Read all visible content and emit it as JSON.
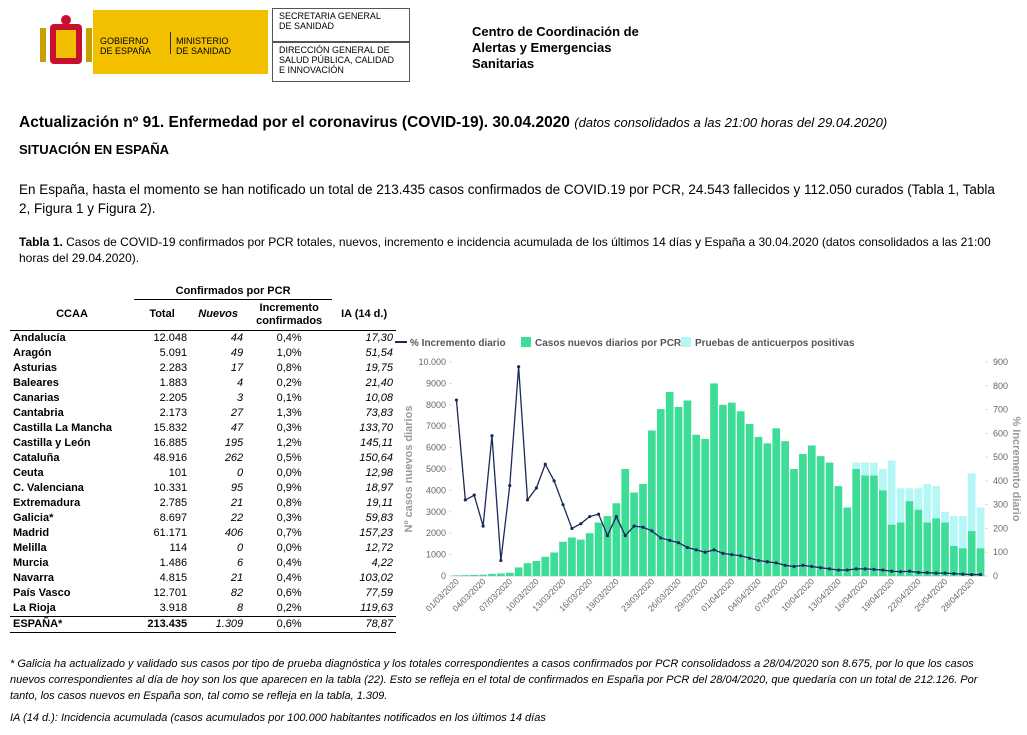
{
  "header": {
    "gov_line1": "GOBIERNO",
    "gov_line2": "DE ESPAÑA",
    "ministry_line1": "MINISTERIO",
    "ministry_line2": "DE SANIDAD",
    "box1": [
      "SECRETARIA GENERAL",
      "DE SANIDAD"
    ],
    "box2": [
      "DIRECCIÓN GENERAL DE",
      "SALUD PÚBLICA, CALIDAD",
      "E INNOVACIÓN"
    ],
    "center": [
      "Centro de Coordinación de",
      "Alertas y Emergencias",
      "Sanitarias"
    ]
  },
  "title": "Actualización nº 91. Enfermedad por el coronavirus (COVID-19). 30.04.2020",
  "title_note": "(datos consolidados a las 21:00 horas del 29.04.2020)",
  "section": "SITUACIÓN EN ESPAÑA",
  "intro": "En España, hasta el momento se han notificado un total de 213.435 casos confirmados de COVID.19 por PCR, 24.543 fallecidos y 112.050 curados (Tabla 1, Tabla 2, Figura 1 y Figura 2).",
  "caption_label": "Tabla 1.",
  "caption": "Casos de COVID-19 confirmados por PCR totales, nuevos, incremento e incidencia acumulada de los últimos 14 días y España a 30.04.2020 (datos consolidados a las 21:00 horas del 29.04.2020).",
  "table": {
    "group_header": "Confirmados por PCR",
    "columns": [
      "CCAA",
      "Total",
      "Nuevos",
      "Incremento confirmados",
      "IA (14 d.)"
    ],
    "rows": [
      [
        "Andalucía",
        "12.048",
        "44",
        "0,4%",
        "17,30"
      ],
      [
        "Aragón",
        "5.091",
        "49",
        "1,0%",
        "51,54"
      ],
      [
        "Asturias",
        "2.283",
        "17",
        "0,8%",
        "19,75"
      ],
      [
        "Baleares",
        "1.883",
        "4",
        "0,2%",
        "21,40"
      ],
      [
        "Canarias",
        "2.205",
        "3",
        "0,1%",
        "10,08"
      ],
      [
        "Cantabria",
        "2.173",
        "27",
        "1,3%",
        "73,83"
      ],
      [
        "Castilla La Mancha",
        "15.832",
        "47",
        "0,3%",
        "133,70"
      ],
      [
        "Castilla y León",
        "16.885",
        "195",
        "1,2%",
        "145,11"
      ],
      [
        "Cataluña",
        "48.916",
        "262",
        "0,5%",
        "150,64"
      ],
      [
        "Ceuta",
        "101",
        "0",
        "0,0%",
        "12,98"
      ],
      [
        "C. Valenciana",
        "10.331",
        "95",
        "0,9%",
        "18,97"
      ],
      [
        "Extremadura",
        "2.785",
        "21",
        "0,8%",
        "19,11"
      ],
      [
        "Galicia*",
        "8.697",
        "22",
        "0,3%",
        "59,83"
      ],
      [
        "Madrid",
        "61.171",
        "406",
        "0,7%",
        "157,23"
      ],
      [
        "Melilla",
        "114",
        "0",
        "0,0%",
        "12,72"
      ],
      [
        "Murcia",
        "1.486",
        "6",
        "0,4%",
        "4,22"
      ],
      [
        "Navarra",
        "4.815",
        "21",
        "0,4%",
        "103,02"
      ],
      [
        "País Vasco",
        "12.701",
        "82",
        "0,6%",
        "77,59"
      ],
      [
        "La Rioja",
        "3.918",
        "8",
        "0,2%",
        "119,63"
      ]
    ],
    "total": [
      "ESPAÑA*",
      "213.435",
      "1.309",
      "0,6%",
      "78,87"
    ]
  },
  "chart_data": {
    "type": "bar",
    "stacked": true,
    "legend": "top",
    "ylabel": "Nº casos nuevos diarios",
    "y2label": "% Incremento diario",
    "categories": [
      "01/03/2020",
      null,
      null,
      "04/03/2020",
      null,
      null,
      "07/03/2020",
      null,
      null,
      "10/03/2020",
      null,
      null,
      "13/03/2020",
      null,
      null,
      "16/03/2020",
      null,
      null,
      "19/03/2020",
      null,
      null,
      null,
      "23/03/2020",
      null,
      null,
      "26/03/2020",
      null,
      null,
      "29/03/2020",
      null,
      null,
      "01/04/2020",
      null,
      null,
      "04/04/2020",
      null,
      null,
      "07/04/2020",
      null,
      null,
      "10/04/2020",
      null,
      null,
      "13/04/2020",
      null,
      null,
      "16/04/2020",
      null,
      null,
      "19/04/2020",
      null,
      null,
      "22/04/2020",
      null,
      null,
      "25/04/2020",
      null,
      null,
      "28/04/2020",
      null
    ],
    "series": [
      {
        "name": "% Incremento diario",
        "type": "line",
        "axis": "y2",
        "color": "#1b2a5a",
        "values": [
          740,
          320,
          340,
          210,
          590,
          65,
          380,
          880,
          320,
          370,
          470,
          400,
          300,
          200,
          220,
          250,
          260,
          170,
          250,
          170,
          210,
          205,
          190,
          160,
          150,
          140,
          120,
          110,
          100,
          110,
          95,
          90,
          85,
          75,
          65,
          60,
          55,
          45,
          40,
          45,
          40,
          35,
          30,
          25,
          25,
          30,
          30,
          28,
          25,
          20,
          18,
          20,
          15,
          14,
          12,
          12,
          10,
          8,
          6,
          6
        ]
      },
      {
        "name": "Casos nuevos diarios por PCR",
        "color": "#3ddc97",
        "values": [
          30,
          40,
          50,
          60,
          100,
          120,
          150,
          400,
          600,
          700,
          900,
          1100,
          1600,
          1800,
          1700,
          2000,
          2500,
          2800,
          3400,
          5000,
          3900,
          4300,
          6800,
          7800,
          8600,
          7900,
          8200,
          6600,
          6400,
          9000,
          8000,
          8100,
          7700,
          7100,
          6500,
          6200,
          6900,
          6300,
          5000,
          5700,
          6100,
          5600,
          5300,
          4200,
          3200,
          5000,
          4700,
          4700,
          4000,
          2400,
          2500,
          3500,
          3100,
          2500,
          2700,
          2500,
          1400,
          1300,
          2100,
          1300
        ]
      },
      {
        "name": "Pruebas de anticuerpos positivas",
        "color": "#b5f6f6",
        "values": [
          null,
          null,
          null,
          null,
          null,
          null,
          null,
          null,
          null,
          null,
          null,
          null,
          null,
          null,
          null,
          null,
          null,
          null,
          null,
          null,
          null,
          null,
          null,
          null,
          null,
          null,
          null,
          null,
          null,
          null,
          null,
          null,
          null,
          null,
          null,
          null,
          null,
          null,
          null,
          null,
          null,
          null,
          null,
          null,
          null,
          300,
          600,
          600,
          1000,
          3000,
          1600,
          600,
          1000,
          1800,
          1500,
          500,
          1400,
          1500,
          2700,
          1900
        ]
      }
    ],
    "ylim": [
      0,
      10000
    ],
    "yticks": [
      0,
      1000,
      2000,
      3000,
      4000,
      5000,
      6000,
      7000,
      8000,
      9000,
      {
        "value": 10000,
        "label": "10.000"
      }
    ],
    "y2lim": [
      0,
      900
    ],
    "y2ticks": [
      0,
      100,
      200,
      300,
      400,
      500,
      600,
      700,
      800,
      900
    ]
  },
  "footnotes": [
    "* Galicia ha actualizado y validado sus casos por tipo de prueba diagnóstica y los totales correspondientes a casos confirmados por PCR consolidadoss a 28/04/2020 son 8.675, por lo que los casos nuevos correspondientes al día de hoy son los que aparecen en la tabla (22). Esto se refleja en el total de confirmados en España por PCR del 28/04/2020, que quedaría con un total de 212.126. Por tanto, los casos nuevos en España son, tal como se refleja en la tabla, 1.309.",
    "IA (14 d.): Incidencia acumulada (casos acumulados por 100.000 habitantes notificados en los últimos 14 días"
  ]
}
